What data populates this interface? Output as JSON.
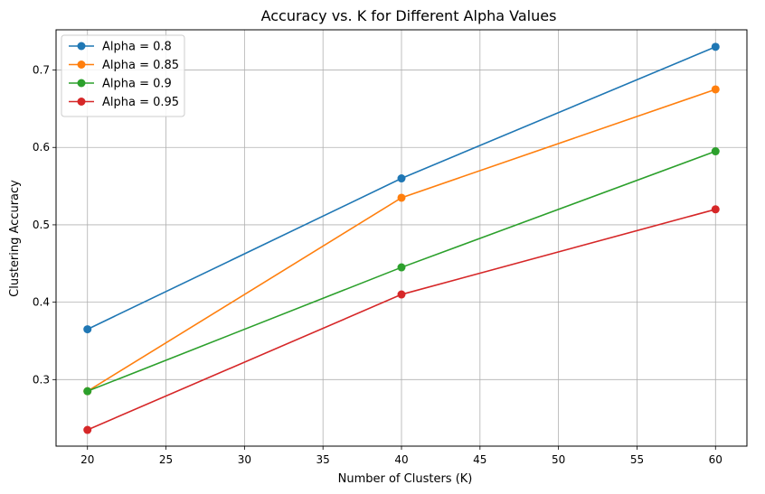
{
  "chart_data": {
    "type": "line",
    "title": "Accuracy vs. K for Different Alpha Values",
    "xlabel": "Number of Clusters (K)",
    "ylabel": "Clustering Accuracy",
    "x": [
      20,
      40,
      60
    ],
    "xlim": [
      18,
      62
    ],
    "ylim": [
      0.214,
      0.752
    ],
    "xticks": [
      20,
      25,
      30,
      35,
      40,
      45,
      50,
      55,
      60
    ],
    "yticks": [
      0.3,
      0.4,
      0.5,
      0.6,
      0.7
    ],
    "grid": true,
    "legend_position": "top-left",
    "marker": "circle",
    "series": [
      {
        "name": "Alpha = 0.8",
        "color": "#1f77b4",
        "values": [
          0.365,
          0.56,
          0.73
        ]
      },
      {
        "name": "Alpha = 0.85",
        "color": "#ff7f0e",
        "values": [
          0.285,
          0.535,
          0.675
        ]
      },
      {
        "name": "Alpha = 0.9",
        "color": "#2ca02c",
        "values": [
          0.285,
          0.445,
          0.595
        ]
      },
      {
        "name": "Alpha = 0.95",
        "color": "#d62728",
        "values": [
          0.235,
          0.41,
          0.52
        ]
      }
    ]
  }
}
